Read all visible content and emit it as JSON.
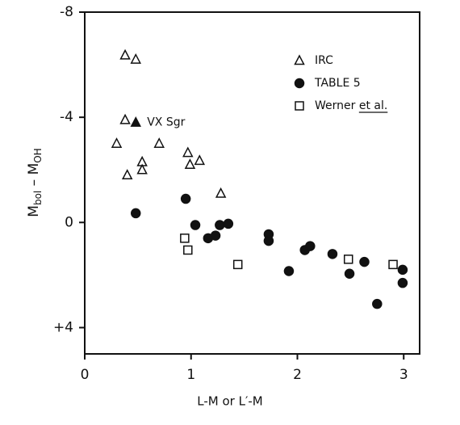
{
  "chart_data": {
    "type": "scatter",
    "x_label": "L-M or L′-M",
    "y_label_parts": [
      "M",
      "bol",
      " – M",
      "OH"
    ],
    "xlim": [
      0,
      3.15
    ],
    "ylim": [
      -8,
      5
    ],
    "y_inverted": true,
    "xticks": [
      0,
      1,
      2,
      3
    ],
    "yticks": [
      -8,
      -4,
      0,
      {
        "value": 4,
        "label": "+4"
      }
    ],
    "color": "#111111",
    "legend_position": "upper right",
    "series": [
      {
        "name": "IRC",
        "marker": "triangle-open",
        "x": [
          0.38,
          0.48,
          0.38,
          0.3,
          0.7,
          0.54,
          0.54,
          0.4,
          0.97,
          0.99,
          1.08,
          1.28
        ],
        "values": [
          -6.36,
          -6.2,
          -3.9,
          -3.0,
          -3.0,
          -2.3,
          -2.0,
          -1.8,
          -2.65,
          -2.2,
          -2.35,
          -1.1
        ]
      },
      {
        "name": "TABLE 5",
        "marker": "circle-filled",
        "x": [
          0.48,
          0.95,
          1.04,
          1.16,
          1.23,
          1.27,
          1.35,
          1.73,
          1.73,
          1.92,
          2.07,
          2.12,
          2.33,
          2.49,
          2.63,
          2.75,
          2.99,
          2.99
        ],
        "values": [
          -0.35,
          -0.9,
          0.1,
          0.6,
          0.5,
          0.1,
          0.05,
          0.45,
          0.7,
          1.85,
          1.05,
          0.9,
          1.2,
          1.95,
          1.5,
          3.1,
          1.8,
          2.3
        ]
      },
      {
        "name": "Werner et al.",
        "marker": "square-open",
        "x": [
          0.94,
          0.97,
          1.44,
          2.48,
          2.9
        ],
        "values": [
          0.6,
          1.05,
          1.6,
          1.4,
          1.6
        ]
      }
    ],
    "annotations": [
      {
        "text": "VX Sgr",
        "marker": "triangle-filled",
        "x": 0.48,
        "y": -3.8
      }
    ]
  }
}
